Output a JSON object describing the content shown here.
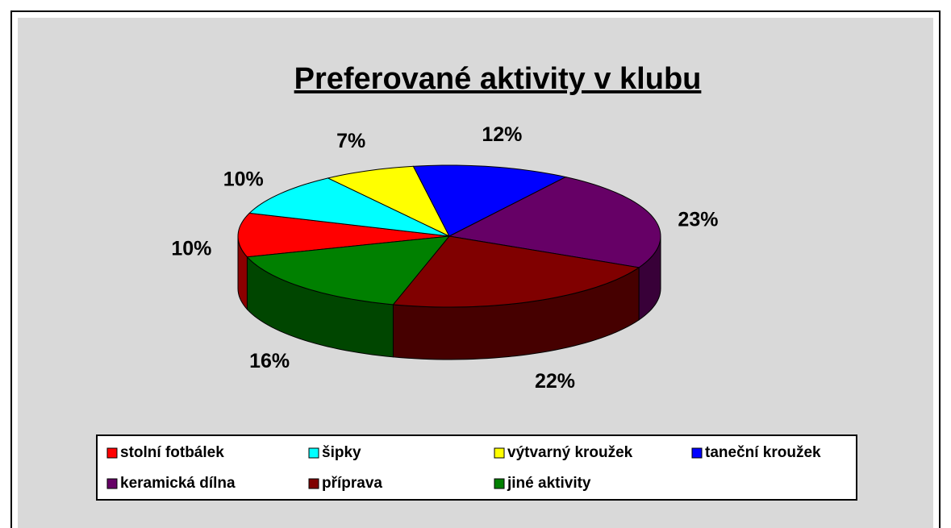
{
  "chart_data": {
    "type": "pie",
    "title": "Preferované aktivity v klubu",
    "categories": [
      "stolní fotbálek",
      "šipky",
      "výtvarný kroužek",
      "taneční kroužek",
      "keramická dílna",
      "příprava",
      "jiné aktivity"
    ],
    "values": [
      10,
      10,
      7,
      12,
      23,
      22,
      16
    ],
    "value_labels": [
      "10%",
      "10%",
      "7%",
      "12%",
      "23%",
      "22%",
      "16%"
    ],
    "colors": [
      "#ff0000",
      "#00ffff",
      "#ffff00",
      "#0000ff",
      "#660066",
      "#800000",
      "#008000"
    ],
    "legend": "bottom"
  }
}
